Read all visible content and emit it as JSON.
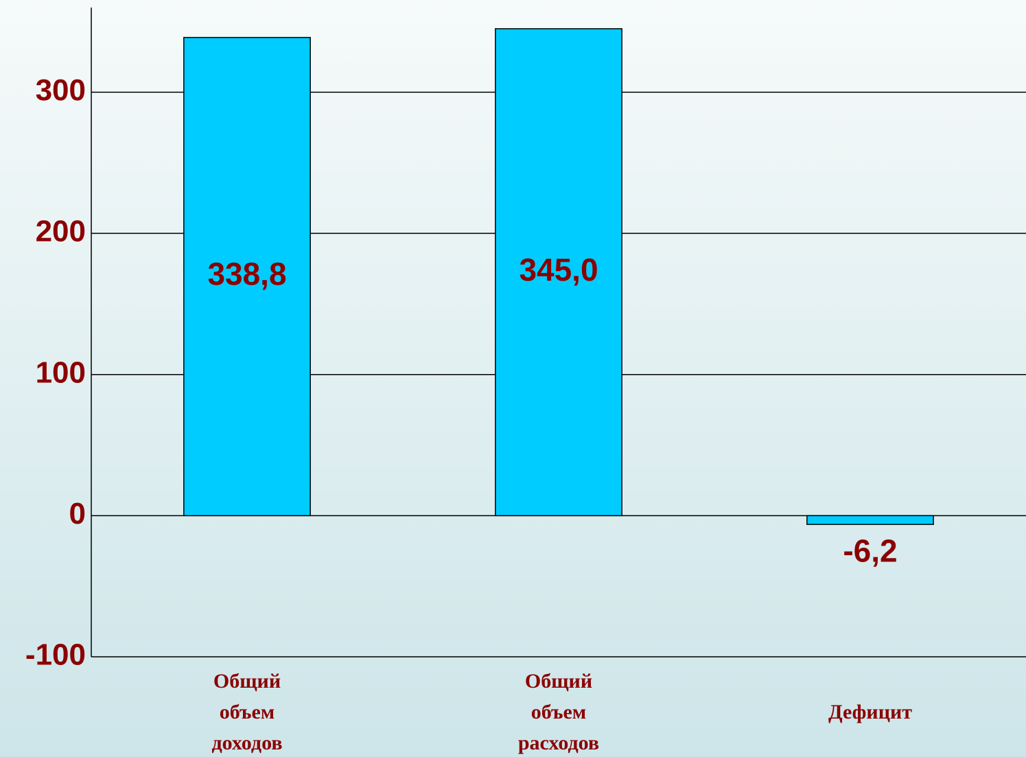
{
  "chart_data": {
    "type": "bar",
    "categories": [
      "Общий объем доходов",
      "Общий объем расходов",
      "Дефицит"
    ],
    "values": [
      338.8,
      345.0,
      -6.2
    ],
    "value_labels": [
      "338,8",
      "345,0",
      "-6,2"
    ],
    "color": "#00ccff",
    "ylim": [
      -100,
      360
    ],
    "yticks": [
      -100,
      0,
      100,
      200,
      300
    ],
    "grid": true
  }
}
